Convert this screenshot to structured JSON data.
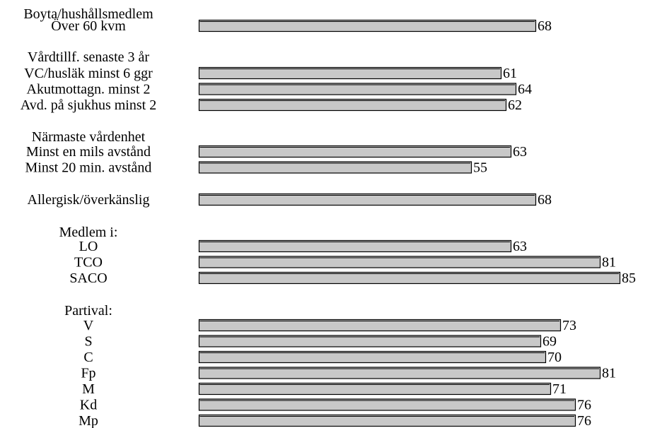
{
  "chart_data": {
    "type": "bar",
    "orientation": "horizontal",
    "title": "",
    "xlabel": "",
    "ylabel": "",
    "grid": false,
    "legend": "none",
    "bar_color": "#c8c8c8",
    "groups": [
      {
        "headers": [
          "Boyta/hushållsmedlem"
        ],
        "rows": [
          {
            "label": "Över 60 kvm",
            "value": 68
          }
        ]
      },
      {
        "headers": [
          "Vårdtillf. senaste 3 år"
        ],
        "rows": [
          {
            "label": "VC/husläk minst 6 ggr",
            "value": 61
          },
          {
            "label": "Akutmottagn. minst 2",
            "value": 64
          },
          {
            "label": "Avd. på sjukhus minst 2",
            "value": 62
          }
        ]
      },
      {
        "headers": [
          "Närmaste vårdenhet"
        ],
        "rows": [
          {
            "label": "Minst en mils avstånd",
            "value": 63
          },
          {
            "label": "Minst 20 min. avstånd",
            "value": 55
          }
        ]
      },
      {
        "headers": [],
        "rows": [
          {
            "label": "Allergisk/överkänslig",
            "value": 68
          }
        ]
      },
      {
        "headers": [
          "Medlem i:"
        ],
        "rows": [
          {
            "label": "LO",
            "value": 63
          },
          {
            "label": "TCO",
            "value": 81
          },
          {
            "label": "SACO",
            "value": 85
          }
        ]
      },
      {
        "headers": [
          "Partival:"
        ],
        "rows": [
          {
            "label": "V",
            "value": 73
          },
          {
            "label": "S",
            "value": 69
          },
          {
            "label": "C",
            "value": 70
          },
          {
            "label": "Fp",
            "value": 81
          },
          {
            "label": "M",
            "value": 71
          },
          {
            "label": "Kd",
            "value": 76
          },
          {
            "label": "Mp",
            "value": 76
          }
        ]
      }
    ]
  }
}
